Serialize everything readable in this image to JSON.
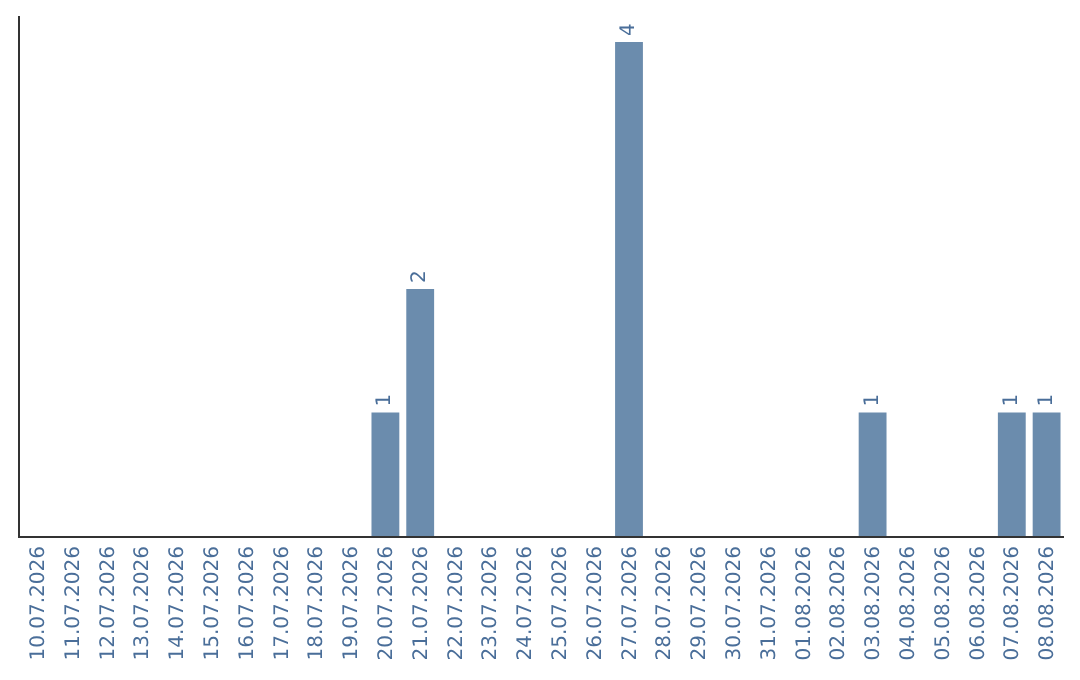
{
  "chart_data": {
    "type": "bar",
    "categories": [
      "10.07.2026",
      "11.07.2026",
      "12.07.2026",
      "13.07.2026",
      "14.07.2026",
      "15.07.2026",
      "16.07.2026",
      "17.07.2026",
      "18.07.2026",
      "19.07.2026",
      "20.07.2026",
      "21.07.2026",
      "22.07.2026",
      "23.07.2026",
      "24.07.2026",
      "25.07.2026",
      "26.07.2026",
      "27.07.2026",
      "28.07.2026",
      "29.07.2026",
      "30.07.2026",
      "31.07.2026",
      "01.08.2026",
      "02.08.2026",
      "03.08.2026",
      "04.08.2026",
      "05.08.2026",
      "06.08.2026",
      "07.08.2026",
      "08.08.2026"
    ],
    "values": [
      0,
      0,
      0,
      0,
      0,
      0,
      0,
      0,
      0,
      0,
      1,
      2,
      0,
      0,
      0,
      0,
      0,
      4,
      0,
      0,
      0,
      0,
      0,
      0,
      1,
      0,
      0,
      0,
      1,
      1
    ],
    "value_labels": [
      null,
      null,
      null,
      null,
      null,
      null,
      null,
      null,
      null,
      null,
      "1",
      "2",
      null,
      null,
      null,
      null,
      null,
      "4",
      null,
      null,
      null,
      null,
      null,
      null,
      "1",
      null,
      null,
      null,
      "1",
      "1"
    ],
    "color": "#6b8cad",
    "tick_labels": "x"
  }
}
